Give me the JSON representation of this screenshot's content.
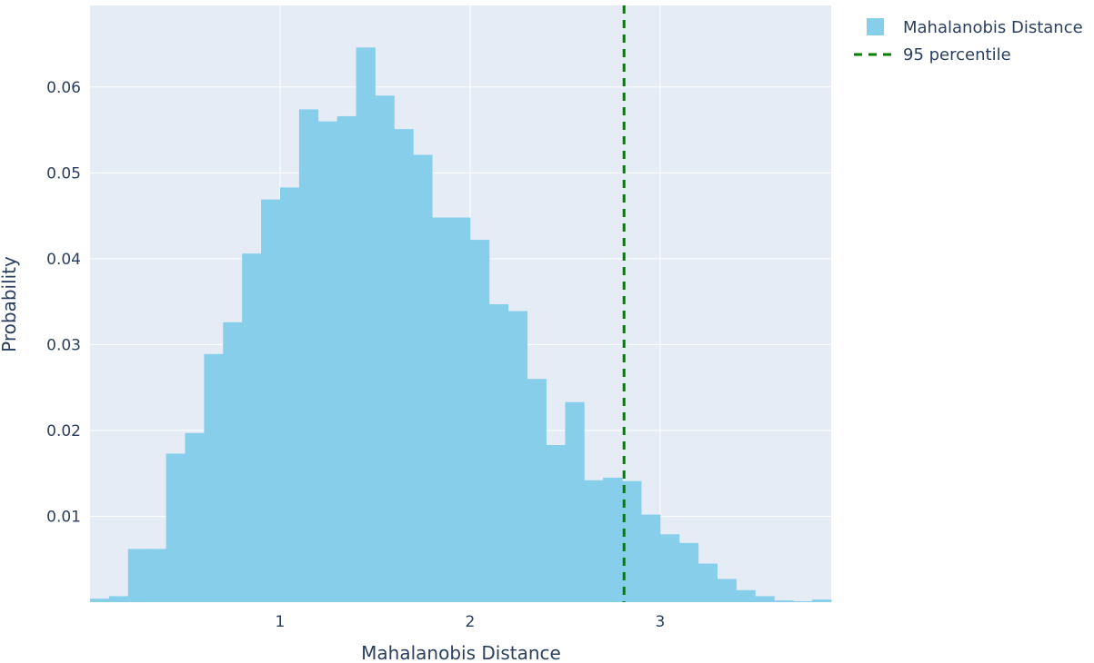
{
  "chart_data": {
    "type": "bar",
    "title": "",
    "xlabel": "Mahalanobis Distance",
    "ylabel": "Probability",
    "bin_width": 0.1,
    "bin_start": 0,
    "xlim": [
      0,
      3.9
    ],
    "ylim": [
      0,
      0.0695
    ],
    "x_ticks": [
      1,
      2,
      3
    ],
    "x_tick_labels": [
      "1",
      "2",
      "3"
    ],
    "y_ticks": [
      0.01,
      0.02,
      0.03,
      0.04,
      0.05,
      0.06
    ],
    "y_tick_labels": [
      "0.01",
      "0.02",
      "0.03",
      "0.04",
      "0.05",
      "0.06"
    ],
    "grid": true,
    "legend_position": "top-right",
    "series": [
      {
        "name": "Mahalanobis Distance",
        "kind": "histogram",
        "color": "#87ceeb",
        "values": [
          0.0004,
          0.0007,
          0.0062,
          0.0062,
          0.0173,
          0.0197,
          0.0289,
          0.0326,
          0.0406,
          0.0469,
          0.0483,
          0.0574,
          0.056,
          0.0566,
          0.0646,
          0.059,
          0.0551,
          0.0521,
          0.0448,
          0.0448,
          0.0422,
          0.0347,
          0.0339,
          0.026,
          0.0183,
          0.0233,
          0.0142,
          0.0145,
          0.0141,
          0.0102,
          0.0079,
          0.0069,
          0.0045,
          0.0027,
          0.0014,
          0.0007,
          0.0002,
          0.0001,
          0.0003
        ]
      },
      {
        "name": "95 percentile",
        "kind": "vline",
        "color": "#008000",
        "dash": "dashed",
        "x": 2.81
      }
    ]
  },
  "colors": {
    "plot_background": "#e5ecf6",
    "grid": "#ffffff",
    "text": "#2a3f5f"
  }
}
